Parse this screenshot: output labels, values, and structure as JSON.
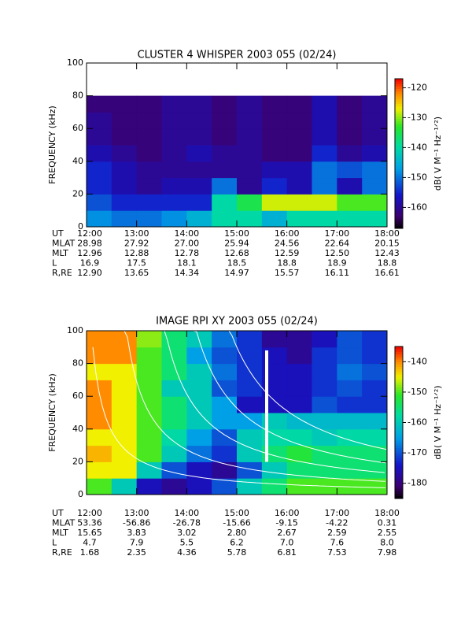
{
  "chart_data": [
    {
      "type": "heatmap",
      "title": "CLUSTER 4 WHISPER 2003 055 (02/24)",
      "y_label": "FREQUENCY (kHz)",
      "colorbar_label": "dB( V M⁻¹ Hz⁻¹ᐟ²)",
      "xlim": [
        12,
        18
      ],
      "ylim": [
        0,
        100
      ],
      "yticks": [
        0,
        20,
        40,
        60,
        80,
        100
      ],
      "xticks": [
        {
          "value": 12,
          "label": "12:00"
        },
        {
          "value": 13,
          "label": "13:00"
        },
        {
          "value": 14,
          "label": "14:00"
        },
        {
          "value": 15,
          "label": "15:00"
        },
        {
          "value": 16,
          "label": "16:00"
        },
        {
          "value": 17,
          "label": "17:00"
        },
        {
          "value": 18,
          "label": "18:00"
        }
      ],
      "x_bins": [
        12,
        12.5,
        13,
        13.5,
        14,
        14.5,
        15,
        15.5,
        16,
        16.5,
        17,
        17.5,
        18
      ],
      "y_bins": [
        0,
        10,
        20,
        30,
        40,
        50,
        60,
        70,
        80
      ],
      "values": [
        [
          -148,
          -150,
          -150,
          -148,
          -145,
          -140,
          -140,
          -145,
          -140,
          -140,
          -140,
          -140
        ],
        [
          -152,
          -155,
          -155,
          -155,
          -155,
          -140,
          -135,
          -128,
          -128,
          -128,
          -132,
          -132
        ],
        [
          -155,
          -158,
          -160,
          -158,
          -158,
          -150,
          -160,
          -155,
          -158,
          -150,
          -158,
          -150
        ],
        [
          -155,
          -158,
          -160,
          -160,
          -160,
          -160,
          -160,
          -158,
          -158,
          -150,
          -152,
          -150
        ],
        [
          -158,
          -160,
          -162,
          -160,
          -158,
          -160,
          -160,
          -162,
          -162,
          -155,
          -160,
          -158
        ],
        [
          -160,
          -162,
          -162,
          -160,
          -160,
          -162,
          -160,
          -162,
          -162,
          -158,
          -162,
          -160
        ],
        [
          -160,
          -162,
          -162,
          -160,
          -160,
          -162,
          -160,
          -162,
          -162,
          -158,
          -162,
          -160
        ],
        [
          -162,
          -162,
          -162,
          -160,
          -160,
          -162,
          -160,
          -162,
          -162,
          -158,
          -162,
          -160
        ]
      ],
      "clim": [
        -167,
        -117
      ],
      "cticks": [
        -120,
        -130,
        -140,
        -150,
        -160
      ],
      "ut_label": "UT",
      "ephemeris": [
        {
          "label": "MLAT",
          "values": [
            "28.98",
            "27.92",
            "27.00",
            "25.94",
            "24.56",
            "22.64",
            "20.15"
          ]
        },
        {
          "label": "MLT",
          "values": [
            "12.96",
            "12.88",
            "12.78",
            "12.68",
            "12.59",
            "12.50",
            "12.43"
          ]
        },
        {
          "label": "L",
          "values": [
            "16.9",
            "17.5",
            "18.1",
            "18.5",
            "18.8",
            "18.9",
            "18.8"
          ]
        },
        {
          "label": "R,RE",
          "values": [
            "12.90",
            "13.65",
            "14.34",
            "14.97",
            "15.57",
            "16.11",
            "16.61"
          ]
        }
      ]
    },
    {
      "type": "heatmap",
      "title": "IMAGE RPI XY 2003 055 (02/24)",
      "y_label": "FREQUENCY (kHz)",
      "colorbar_label": "dB( V M⁻¹ Hz⁻¹ᐟ²)",
      "xlim": [
        12,
        18
      ],
      "ylim": [
        0,
        100
      ],
      "yticks": [
        0,
        20,
        40,
        60,
        80,
        100
      ],
      "xticks": [
        {
          "value": 12,
          "label": "12:00"
        },
        {
          "value": 13,
          "label": "13:00"
        },
        {
          "value": 14,
          "label": "14:00"
        },
        {
          "value": 15,
          "label": "15:00"
        },
        {
          "value": 16,
          "label": "16:00"
        },
        {
          "value": 17,
          "label": "17:00"
        },
        {
          "value": 18,
          "label": "18:00"
        }
      ],
      "x_bins": [
        12,
        12.5,
        13,
        13.5,
        14,
        14.5,
        15,
        15.5,
        16,
        16.5,
        17,
        17.5,
        18
      ],
      "y_bins": [
        0,
        10,
        20,
        30,
        40,
        50,
        60,
        70,
        80,
        90,
        100
      ],
      "values": [
        [
          -150,
          -160,
          -175,
          -178,
          -175,
          -170,
          -160,
          -155,
          -150,
          -150,
          -150,
          -150
        ],
        [
          -145,
          -145,
          -160,
          -170,
          -175,
          -178,
          -170,
          -160,
          -155,
          -155,
          -155,
          -155
        ],
        [
          -142,
          -145,
          -150,
          -160,
          -168,
          -172,
          -160,
          -155,
          -152,
          -155,
          -155,
          -155
        ],
        [
          -145,
          -145,
          -150,
          -158,
          -165,
          -170,
          -160,
          -158,
          -158,
          -160,
          -158,
          -158
        ],
        [
          -140,
          -145,
          -150,
          -155,
          -160,
          -165,
          -165,
          -160,
          -162,
          -162,
          -162,
          -162
        ],
        [
          -140,
          -145,
          -150,
          -155,
          -160,
          -165,
          -175,
          -175,
          -175,
          -170,
          -172,
          -172
        ],
        [
          -140,
          -145,
          -150,
          -160,
          -160,
          -170,
          -172,
          -175,
          -175,
          -172,
          -170,
          -172
        ],
        [
          -145,
          -145,
          -150,
          -155,
          -160,
          -168,
          -172,
          -175,
          -175,
          -172,
          -168,
          -170
        ],
        [
          -140,
          -140,
          -150,
          -155,
          -165,
          -170,
          -172,
          -175,
          -178,
          -172,
          -170,
          -172
        ],
        [
          -140,
          -140,
          -148,
          -155,
          -160,
          -168,
          -172,
          -178,
          -178,
          -175,
          -170,
          -172
        ]
      ],
      "clim": [
        -185,
        -135
      ],
      "cticks": [
        -140,
        -150,
        -160,
        -170,
        -180
      ],
      "ut_label": "UT",
      "ephemeris": [
        {
          "label": "MLAT",
          "values": [
            "53.36",
            "-56.86",
            "-26.78",
            "-15.66",
            "-9.15",
            "-4.22",
            "0.31"
          ]
        },
        {
          "label": "MLT",
          "values": [
            "15.65",
            "3.83",
            "3.02",
            "2.80",
            "2.67",
            "2.59",
            "2.55"
          ]
        },
        {
          "label": "L",
          "values": [
            "4.7",
            "7.9",
            "5.5",
            "6.2",
            "7.0",
            "7.6",
            "8.0"
          ]
        },
        {
          "label": "R,RE",
          "values": [
            "1.68",
            "2.35",
            "4.36",
            "5.78",
            "6.81",
            "7.53",
            "7.98"
          ]
        }
      ]
    }
  ]
}
